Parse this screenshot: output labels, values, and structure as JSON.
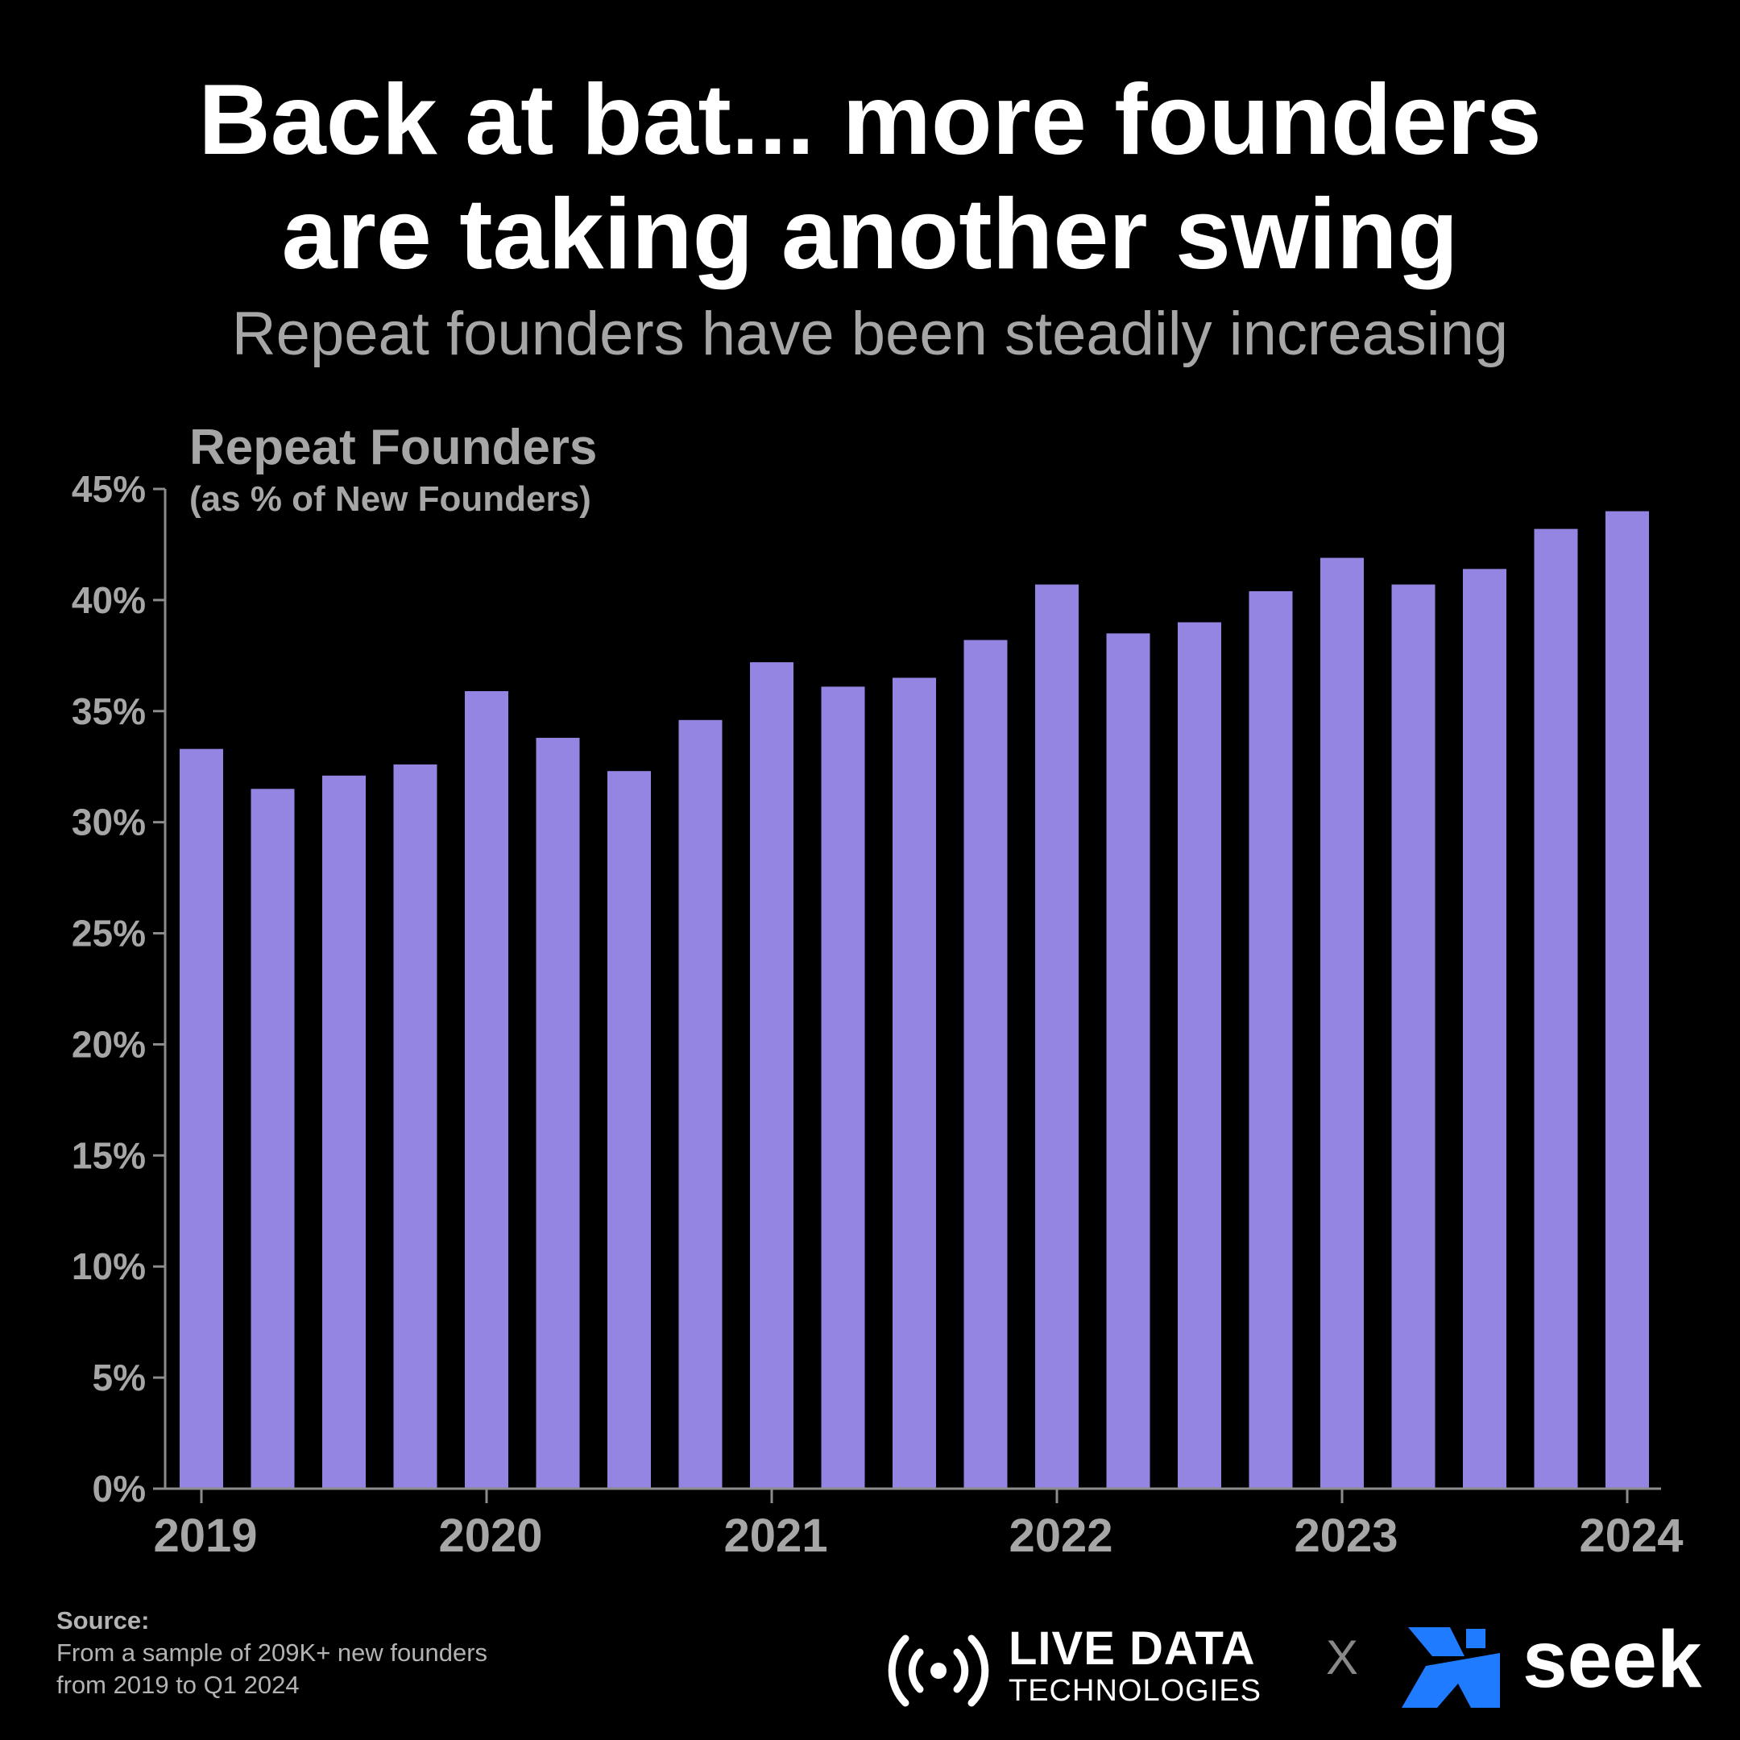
{
  "header": {
    "title_line1": "Back at bat... more founders",
    "title_line2": "are taking another swing",
    "subtitle": "Repeat founders have been steadily increasing"
  },
  "chart_data": {
    "type": "bar",
    "chart_title": "Repeat Founders",
    "chart_subtitle": "(as % of New Founders)",
    "y_tick_labels": [
      "0%",
      "5%",
      "10%",
      "15%",
      "20%",
      "25%",
      "30%",
      "35%",
      "40%",
      "45%"
    ],
    "x_tick_labels": [
      "2019",
      "2020",
      "2021",
      "2022",
      "2023",
      "2024"
    ],
    "ylim": [
      0,
      45
    ],
    "y_unit": "%",
    "bar_color": "#9485e2",
    "axis_color": "#8c8c8c",
    "grid": false,
    "values": [
      33.3,
      31.5,
      32.1,
      32.6,
      35.9,
      33.8,
      32.3,
      34.6,
      37.2,
      36.1,
      36.5,
      38.2,
      40.7,
      38.5,
      39.0,
      40.4,
      41.9,
      40.7,
      41.4,
      43.2,
      44.0
    ]
  },
  "footer": {
    "source_label": "Source:",
    "source_line1": "From a sample of 209K+ new founders",
    "source_line2": "from 2019 to Q1 2024"
  },
  "logos": {
    "ldt_line1": "LIVE DATA",
    "ldt_line2": "TECHNOLOGIES",
    "separator": "X",
    "seek": "seek",
    "seek_color": "#1f7bff",
    "ldt_icon": "broadcast-icon",
    "seek_icon": "seek-logo-icon"
  }
}
